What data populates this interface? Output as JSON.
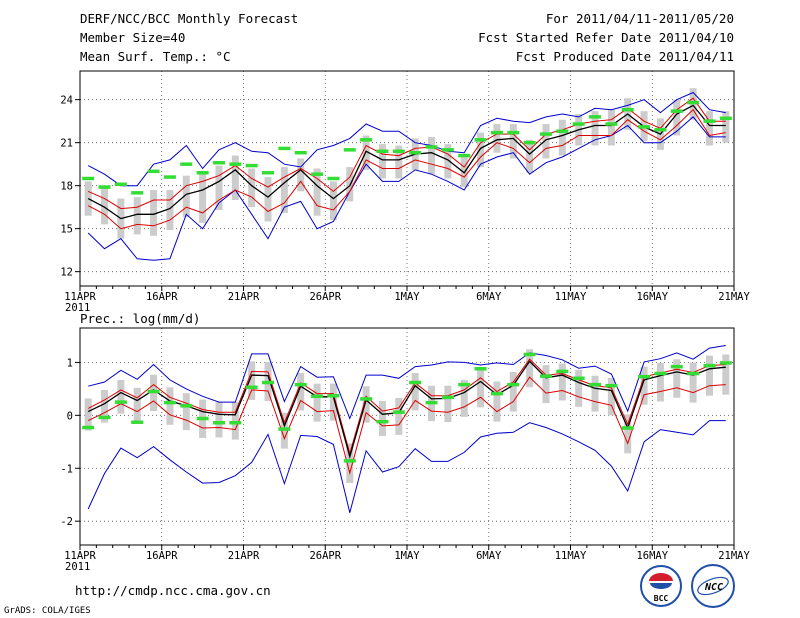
{
  "header": {
    "title": "DERF/NCC/BCC Monthly Forecast",
    "member_size": "Member Size=40",
    "var1_label": "Mean Surf. Temp.: °C",
    "period": "For 2011/04/11-2011/05/20",
    "refer_date": "Fcst Started Refer Date 2011/04/10",
    "produced_date": "Fcst Produced Date 2011/04/11",
    "var2_label": "Prec.: log(mm/d)"
  },
  "footer": {
    "url": "http://cmdp.ncc.cma.gov.cn",
    "grads": "GrADS: COLA/IGES",
    "logo_bcc": "BCC",
    "logo_ncc": "NCC"
  },
  "colors": {
    "envelope": "#0000cc",
    "spread": "#dd0000",
    "mean": "#000000",
    "box": "#cccccc",
    "obs": "#33dd33",
    "grid": "#555555"
  },
  "chart_data": [
    {
      "type": "line",
      "title": "Mean Surf. Temp.: °C",
      "x_ticks": [
        "11APR",
        "16APR",
        "21APR",
        "26APR",
        "1MAY",
        "6MAY",
        "11MAY",
        "16MAY",
        "21MAY"
      ],
      "x_year_label": "2011",
      "y_ticks": [
        "12",
        "15",
        "18",
        "21",
        "24"
      ],
      "ylim": [
        11,
        26
      ],
      "days": 40,
      "series": [
        {
          "name": "max",
          "values": [
            19.4,
            18.8,
            18,
            18,
            19.5,
            19.8,
            20.8,
            19.2,
            20.5,
            21,
            20.4,
            20.3,
            19.5,
            19.3,
            20.5,
            20.8,
            21.3,
            22.3,
            21.8,
            21.8,
            21,
            20.8,
            20.4,
            20.3,
            22.2,
            22.7,
            22.5,
            22.4,
            22.8,
            23,
            22.8,
            23.4,
            23.3,
            23.6,
            24,
            23.1,
            24,
            24.5,
            23.3,
            23.1
          ]
        },
        {
          "name": "spread_upper",
          "values": [
            17.6,
            17.1,
            16.4,
            16.5,
            17,
            17,
            18,
            18.3,
            18.7,
            19.4,
            18.5,
            17.9,
            18.6,
            19.2,
            18.5,
            17.6,
            18.6,
            20.8,
            20.2,
            20.1,
            20.6,
            20.7,
            20.2,
            19.3,
            21,
            21.6,
            21.6,
            20.5,
            21.6,
            21.9,
            22.3,
            22.5,
            22.6,
            23.4,
            22.5,
            22,
            23.3,
            24.1,
            22.5,
            22.5
          ]
        },
        {
          "name": "mean",
          "values": [
            17.1,
            16.5,
            15.7,
            16,
            16,
            16.4,
            17.4,
            17.7,
            18.3,
            19.1,
            18,
            17.2,
            18.2,
            19.1,
            18,
            17.1,
            18,
            20.4,
            19.8,
            19.8,
            20.2,
            20.3,
            19.8,
            18.9,
            20.6,
            21.2,
            21.3,
            20.2,
            21.2,
            21.5,
            21.9,
            22.2,
            22.2,
            23,
            22.1,
            21.6,
            23,
            23.6,
            22.2,
            22.2
          ]
        },
        {
          "name": "spread_lower",
          "values": [
            16.6,
            16,
            15,
            15.3,
            15.2,
            15.6,
            16.5,
            16.1,
            17,
            17.7,
            17.2,
            16.2,
            16.8,
            18.3,
            16.6,
            16.3,
            17.6,
            19.8,
            19.2,
            19.2,
            19.8,
            19.5,
            19.2,
            18.6,
            20,
            21,
            20.6,
            19.6,
            20.6,
            20.8,
            21.5,
            21.5,
            21.5,
            22.6,
            21.8,
            21.2,
            22.2,
            23.3,
            21.5,
            21.7
          ]
        },
        {
          "name": "min",
          "values": [
            14.7,
            13.6,
            14.3,
            12.9,
            12.8,
            12.9,
            16,
            15,
            16.8,
            17.7,
            16,
            14.3,
            16.5,
            16.9,
            15,
            15.5,
            17.6,
            19.5,
            18.3,
            18.3,
            19.1,
            18.8,
            18.3,
            17.7,
            19.5,
            20,
            20.3,
            18.8,
            19.6,
            20,
            20.6,
            21.2,
            21.5,
            22.2,
            21,
            21,
            21.8,
            22.8,
            21.4,
            21.4
          ]
        },
        {
          "name": "observed",
          "values": [
            18.5,
            17.9,
            18.1,
            17.5,
            19,
            18.6,
            19.5,
            18.9,
            19.6,
            19.5,
            19.4,
            18.9,
            20.6,
            20.3,
            18.8,
            18.5,
            20.5,
            21.2,
            20.4,
            20.4,
            20.3,
            20.7,
            20.5,
            20.1,
            21.2,
            21.7,
            21.7,
            21,
            21.6,
            21.8,
            22.3,
            22.8,
            22.3,
            23.3,
            22.1,
            21.9,
            23.2,
            23.8,
            22.5,
            22.7
          ]
        }
      ]
    },
    {
      "type": "line",
      "title": "Prec.: log(mm/d)",
      "x_ticks": [
        "11APR",
        "16APR",
        "21APR",
        "26APR",
        "1MAY",
        "6MAY",
        "11MAY",
        "16MAY",
        "21MAY"
      ],
      "x_year_label": "2011",
      "y_ticks": [
        "-2",
        "-1",
        "0",
        "1"
      ],
      "ylim": [
        -2.45,
        1.65
      ],
      "days": 40,
      "series": [
        {
          "name": "max",
          "values": [
            0.55,
            0.63,
            0.85,
            0.68,
            0.96,
            0.67,
            0.5,
            0.36,
            0.25,
            0.25,
            1.16,
            1.16,
            0.26,
            0.92,
            0.72,
            0.73,
            -0.06,
            0.76,
            0.76,
            0.7,
            0.92,
            0.95,
            1.01,
            1,
            0.95,
            0.99,
            0.96,
            1.18,
            1.13,
            1.05,
            0.89,
            0.93,
            0.78,
            0.08,
            1.01,
            1.07,
            1.18,
            1.06,
            1.27,
            1.32
          ]
        },
        {
          "name": "spread_upper",
          "values": [
            0.13,
            0.29,
            0.48,
            0.33,
            0.58,
            0.34,
            0.23,
            0.11,
            0.06,
            0.06,
            0.83,
            0.82,
            -0.14,
            0.61,
            0.41,
            0.41,
            -0.72,
            0.36,
            0.08,
            0.14,
            0.61,
            0.37,
            0.37,
            0.48,
            0.71,
            0.45,
            0.63,
            1.06,
            0.76,
            0.79,
            0.67,
            0.56,
            0.52,
            -0.17,
            0.73,
            0.8,
            0.87,
            0.81,
            0.94,
            0.96
          ]
        },
        {
          "name": "mean",
          "values": [
            0.07,
            0.22,
            0.43,
            0.28,
            0.48,
            0.27,
            0.18,
            0.07,
            0.02,
            0.01,
            0.76,
            0.75,
            -0.2,
            0.55,
            0.35,
            0.35,
            -0.78,
            0.29,
            0.02,
            0.05,
            0.56,
            0.31,
            0.32,
            0.43,
            0.64,
            0.39,
            0.57,
            1.02,
            0.71,
            0.76,
            0.62,
            0.51,
            0.47,
            -0.24,
            0.67,
            0.75,
            0.82,
            0.76,
            0.88,
            0.91
          ]
        },
        {
          "name": "spread_lower",
          "values": [
            -0.1,
            0.05,
            0.22,
            0.07,
            0.27,
            0.01,
            -0.09,
            -0.24,
            -0.23,
            -0.27,
            0.48,
            0.46,
            -0.44,
            0.28,
            0.07,
            0.09,
            -1.09,
            0.05,
            -0.2,
            -0.18,
            0.28,
            0.08,
            0.06,
            0.16,
            0.34,
            0.07,
            0.26,
            0.72,
            0.42,
            0.47,
            0.35,
            0.26,
            0.19,
            -0.53,
            0.39,
            0.45,
            0.52,
            0.43,
            0.56,
            0.58
          ]
        },
        {
          "name": "min",
          "values": [
            -1.77,
            -1.1,
            -0.62,
            -0.8,
            -0.59,
            -0.84,
            -1.07,
            -1.28,
            -1.27,
            -1.14,
            -0.89,
            -0.36,
            -1.29,
            -0.38,
            -0.4,
            -0.55,
            -1.84,
            -0.67,
            -1.07,
            -0.97,
            -0.63,
            -0.87,
            -0.87,
            -0.7,
            -0.41,
            -0.34,
            -0.32,
            -0.14,
            -0.23,
            -0.35,
            -0.5,
            -0.66,
            -0.96,
            -1.43,
            -0.5,
            -0.27,
            -0.32,
            -0.37,
            -0.1,
            -0.1
          ]
        },
        {
          "name": "observed",
          "values": [
            -0.23,
            -0.04,
            0.25,
            -0.13,
            0.45,
            0.24,
            0.18,
            -0.06,
            -0.14,
            -0.14,
            0.53,
            0.62,
            -0.26,
            0.58,
            0.36,
            0.37,
            -0.86,
            0.31,
            -0.12,
            0.06,
            0.62,
            0.24,
            0.34,
            0.58,
            0.88,
            0.41,
            0.58,
            1.15,
            0.74,
            0.83,
            0.7,
            0.58,
            0.56,
            -0.24,
            0.73,
            0.79,
            0.92,
            0.79,
            0.94,
            0.99
          ]
        }
      ]
    }
  ]
}
